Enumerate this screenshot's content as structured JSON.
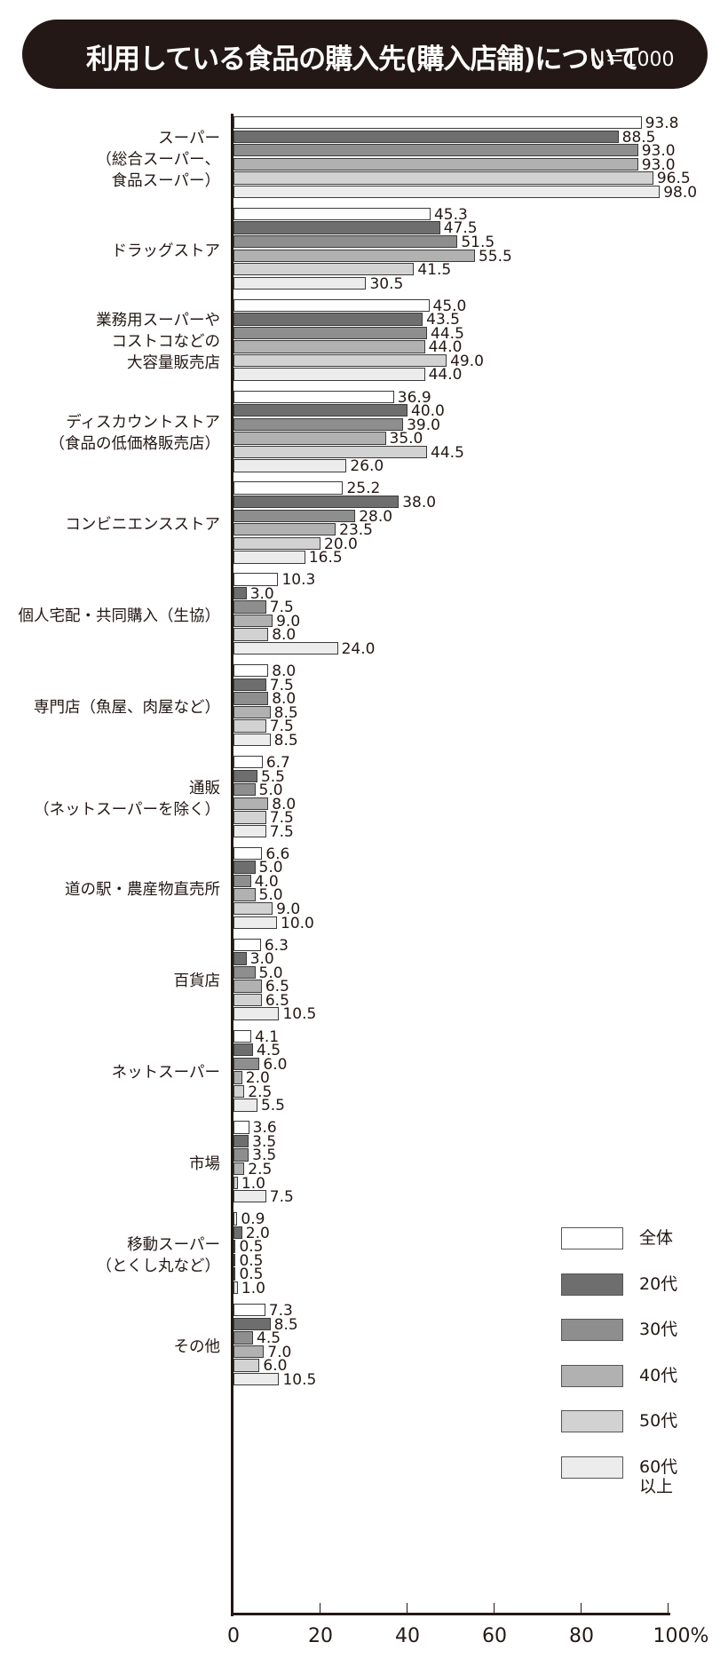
{
  "title": "利用している食品の購入先(購入店舗)について",
  "sample_size": "N＝1000",
  "chart_data": {
    "type": "bar",
    "orientation": "horizontal",
    "title": "利用している食品の購入先(購入店舗)について",
    "subtitle": "N＝1000",
    "xlabel": "",
    "ylabel": "",
    "xlim": [
      0,
      100
    ],
    "x_ticks": [
      "0",
      "20",
      "40",
      "60",
      "80",
      "100%"
    ],
    "grid": false,
    "legend_position": "right-bottom",
    "categories": [
      "スーパー\n（総合スーパー、\n食品スーパー）",
      "ドラッグストア",
      "業務用スーパーや\nコストコなどの\n大容量販売店",
      "ディスカウントストア\n（食品の低価格販売店）",
      "コンビニエンスストア",
      "個人宅配・共同購入（生協）",
      "専門店（魚屋、肉屋など）",
      "通販\n（ネットスーパーを除く）",
      "道の駅・農産物直売所",
      "百貨店",
      "ネットスーパー",
      "市場",
      "移動スーパー\n（とくし丸など）",
      "その他"
    ],
    "series": [
      {
        "name": "全体",
        "color": "#ffffff",
        "values": [
          93.8,
          45.3,
          45.0,
          36.9,
          25.2,
          10.3,
          8.0,
          6.7,
          6.6,
          6.3,
          4.1,
          3.6,
          0.9,
          7.3
        ]
      },
      {
        "name": "20代",
        "color": "#6e6e6e",
        "values": [
          88.5,
          47.5,
          43.5,
          40.0,
          38.0,
          3.0,
          7.5,
          5.5,
          5.0,
          3.0,
          4.5,
          3.5,
          2.0,
          8.5
        ]
      },
      {
        "name": "30代",
        "color": "#8e8e8e",
        "values": [
          93.0,
          51.5,
          44.5,
          39.0,
          28.0,
          7.5,
          8.0,
          5.0,
          4.0,
          5.0,
          6.0,
          3.5,
          0.5,
          4.5
        ]
      },
      {
        "name": "40代",
        "color": "#b1b1b1",
        "values": [
          93.0,
          55.5,
          44.0,
          35.0,
          23.5,
          9.0,
          8.5,
          8.0,
          5.0,
          6.5,
          2.0,
          2.5,
          0.5,
          7.0
        ]
      },
      {
        "name": "50代",
        "color": "#d2d2d2",
        "values": [
          96.5,
          41.5,
          49.0,
          44.5,
          20.0,
          8.0,
          7.5,
          7.5,
          9.0,
          6.5,
          2.5,
          1.0,
          0.5,
          6.0
        ]
      },
      {
        "name": "60代以上",
        "color": "#ececec",
        "values": [
          98.0,
          30.5,
          44.0,
          26.0,
          16.5,
          24.0,
          8.5,
          7.5,
          10.0,
          10.5,
          5.5,
          7.5,
          1.0,
          10.5
        ]
      }
    ],
    "value_labels": [
      [
        "93.8",
        "45.3",
        "45.0",
        "36.9",
        "25.2",
        "10.3",
        "8.0",
        "6.7",
        "6.6",
        "6.3",
        "4.1",
        "3.6",
        "0.9",
        "7.3"
      ],
      [
        "88.5",
        "47.5",
        "43.5",
        "40.0",
        "38.0",
        "3.0",
        "7.5",
        "5.5",
        "5.0",
        "3.0",
        "4.5",
        "3.5",
        "2.0",
        "8.5"
      ],
      [
        "93.0",
        "51.5",
        "44.5",
        "39.0",
        "28.0",
        "7.5",
        "8.0",
        "5.0",
        "4.0",
        "5.0",
        "6.0",
        "3.5",
        "0.5",
        "4.5"
      ],
      [
        "93.0",
        "55.5",
        "44.0",
        "35.0",
        "23.5",
        "9.0",
        "8.5",
        "8.0",
        "5.0",
        "6.5",
        "2.0",
        "2.5",
        "0.5",
        "7.0"
      ],
      [
        "96.5",
        "41.5",
        "49.0",
        "44.5",
        "20.0",
        "8.0",
        "7.5",
        "7.5",
        "9.0",
        "6.5",
        "2.5",
        "1.0",
        "0.5",
        "6.0"
      ],
      [
        "98.0",
        "30.5",
        "44.0",
        "26.0",
        "16.5",
        "24.0",
        "8.5",
        "7.5",
        "10.0",
        "10.5",
        "5.5",
        "7.5",
        "1.0",
        "10.5"
      ]
    ]
  },
  "legend": [
    {
      "label": "全体",
      "color": "#ffffff"
    },
    {
      "label": "20代",
      "color": "#6e6e6e"
    },
    {
      "label": "30代",
      "color": "#8e8e8e"
    },
    {
      "label": "40代",
      "color": "#b1b1b1"
    },
    {
      "label": "50代",
      "color": "#d2d2d2"
    },
    {
      "label": "60代\n以上",
      "color": "#ececec"
    }
  ]
}
